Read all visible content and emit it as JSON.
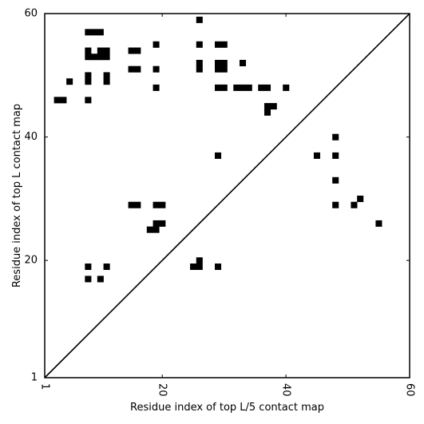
{
  "chart_data": {
    "type": "heatmap",
    "xlabel": "Residue index of top L/5 contact map",
    "ylabel": "Residue index of top L contact map",
    "xlim": [
      1,
      60
    ],
    "ylim": [
      1,
      60
    ],
    "x_ticks": [
      1,
      20,
      40,
      60
    ],
    "y_ticks": [
      1,
      20,
      40,
      60
    ],
    "x_tick_labels": [
      "1",
      "20",
      "40",
      "60"
    ],
    "y_tick_labels": [
      "1",
      "20",
      "40",
      "60"
    ],
    "x_tick_rotation": -90,
    "diagonal": true,
    "grid": false,
    "cell_color": "#000000",
    "upper_triangle_contacts": [
      [
        26,
        59
      ],
      [
        8,
        57
      ],
      [
        9,
        57
      ],
      [
        10,
        57
      ],
      [
        19,
        55
      ],
      [
        26,
        55
      ],
      [
        29,
        55
      ],
      [
        30,
        55
      ],
      [
        8,
        54
      ],
      [
        10,
        54
      ],
      [
        11,
        54
      ],
      [
        15,
        54
      ],
      [
        16,
        54
      ],
      [
        8,
        53
      ],
      [
        9,
        53
      ],
      [
        10,
        53
      ],
      [
        11,
        53
      ],
      [
        26,
        52
      ],
      [
        29,
        52
      ],
      [
        30,
        52
      ],
      [
        33,
        52
      ],
      [
        15,
        51
      ],
      [
        16,
        51
      ],
      [
        19,
        51
      ],
      [
        26,
        51
      ],
      [
        29,
        51
      ],
      [
        30,
        51
      ],
      [
        8,
        50
      ],
      [
        11,
        50
      ],
      [
        5,
        49
      ],
      [
        8,
        49
      ],
      [
        11,
        49
      ],
      [
        19,
        48
      ],
      [
        29,
        48
      ],
      [
        30,
        48
      ],
      [
        32,
        48
      ],
      [
        33,
        48
      ],
      [
        34,
        48
      ],
      [
        36,
        48
      ],
      [
        37,
        48
      ],
      [
        40,
        48
      ],
      [
        3,
        46
      ],
      [
        4,
        46
      ],
      [
        8,
        46
      ],
      [
        37,
        45
      ],
      [
        38,
        45
      ],
      [
        37,
        44
      ]
    ],
    "lower_triangle_contacts": [
      [
        48,
        40
      ],
      [
        29,
        37
      ],
      [
        45,
        37
      ],
      [
        48,
        37
      ],
      [
        48,
        33
      ],
      [
        52,
        30
      ],
      [
        15,
        29
      ],
      [
        16,
        29
      ],
      [
        19,
        29
      ],
      [
        20,
        29
      ],
      [
        48,
        29
      ],
      [
        51,
        29
      ],
      [
        19,
        26
      ],
      [
        20,
        26
      ],
      [
        55,
        26
      ],
      [
        18,
        25
      ],
      [
        19,
        25
      ],
      [
        26,
        20
      ],
      [
        8,
        19
      ],
      [
        11,
        19
      ],
      [
        25,
        19
      ],
      [
        26,
        19
      ],
      [
        29,
        19
      ],
      [
        8,
        17
      ],
      [
        10,
        17
      ]
    ]
  }
}
